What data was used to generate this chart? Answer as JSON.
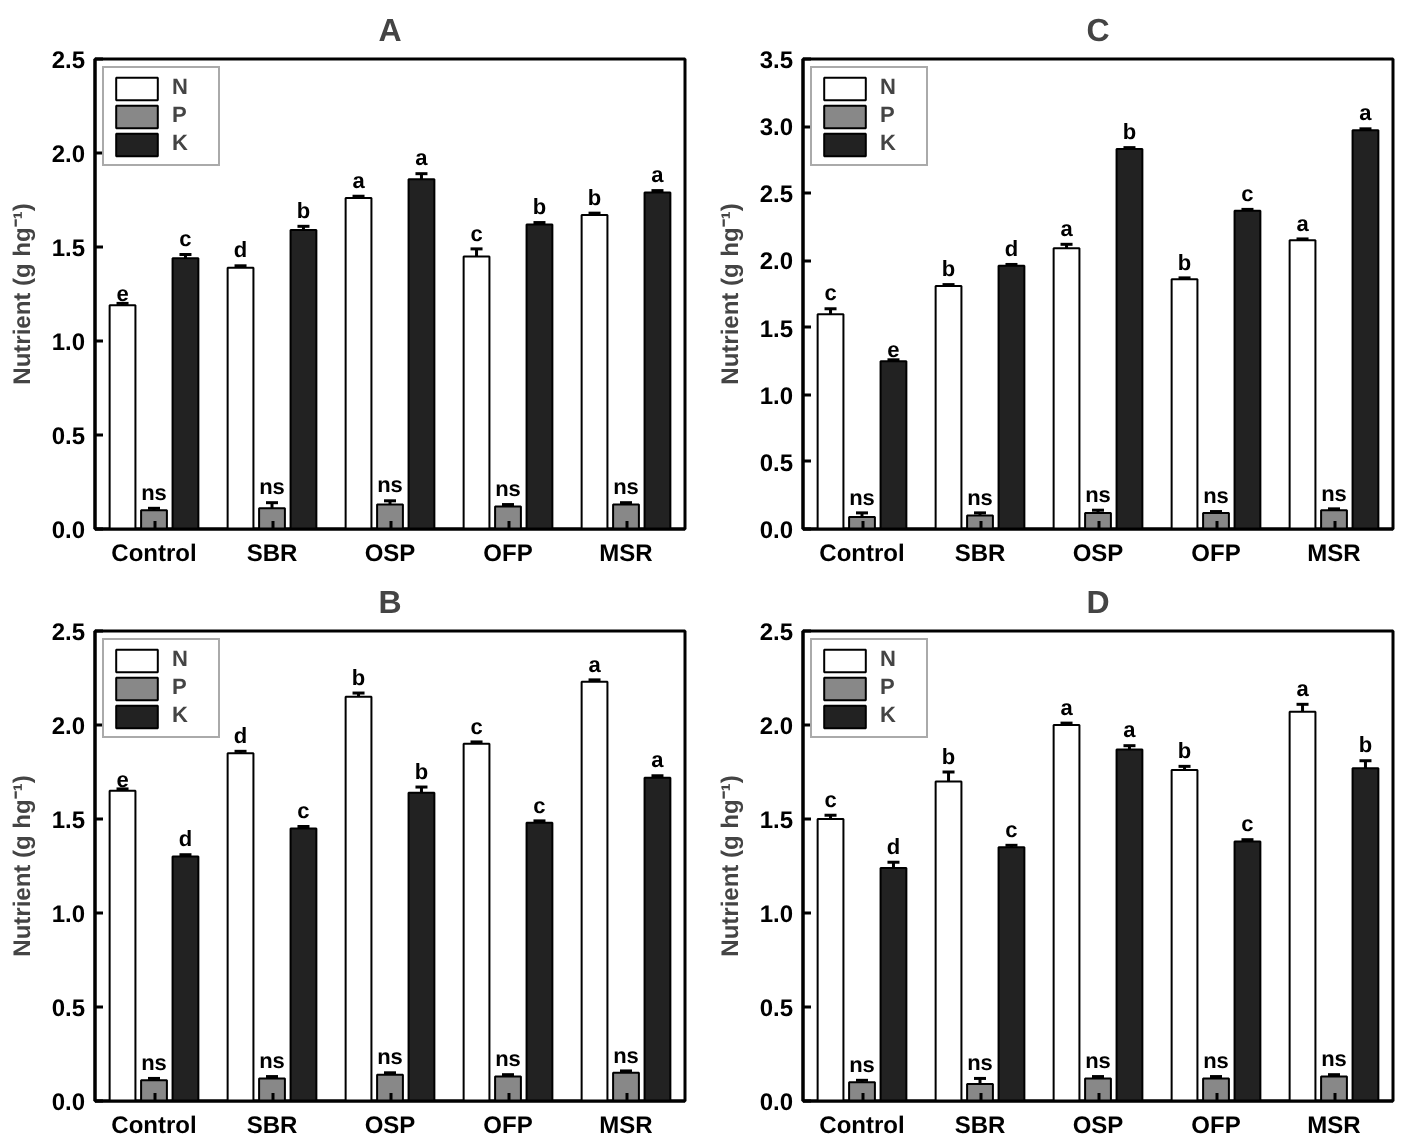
{
  "chart_data": [
    {
      "type": "bar",
      "title": "A",
      "ylabel": "Nutrient (g hg⁻¹)",
      "categories": [
        "Control",
        "SBR",
        "OSP",
        "OFP",
        "MSR"
      ],
      "ylim": [
        0,
        2.5
      ],
      "yticks": [
        {
          "value": 0,
          "label": "0.0"
        },
        0.5,
        {
          "value": 1,
          "label": "1.0"
        },
        1.5,
        {
          "value": 2,
          "label": "2.0"
        },
        2.5
      ],
      "grid": false,
      "legend": "top left",
      "series": [
        {
          "name": "N",
          "color": "#ffffff",
          "values": [
            1.19,
            1.39,
            1.76,
            1.45,
            1.67
          ],
          "errors": [
            0.01,
            0.01,
            0.01,
            0.04,
            0.01
          ],
          "value_labels": [
            "e",
            "d",
            "a",
            "c",
            "b"
          ]
        },
        {
          "name": "P",
          "color": "#888888",
          "values": [
            0.1,
            0.11,
            0.13,
            0.12,
            0.13
          ],
          "errors": [
            0.01,
            0.03,
            0.02,
            0.01,
            0.01
          ],
          "value_labels": [
            "ns",
            "ns",
            "ns",
            "ns",
            "ns"
          ]
        },
        {
          "name": "K",
          "color": "#222222",
          "values": [
            1.44,
            1.59,
            1.86,
            1.62,
            1.79
          ],
          "errors": [
            0.02,
            0.02,
            0.03,
            0.01,
            0.01
          ],
          "value_labels": [
            "c",
            "b",
            "a",
            "b",
            "a"
          ]
        }
      ]
    },
    {
      "type": "bar",
      "title": "C",
      "ylabel": "Nutrient (g hg⁻¹)",
      "categories": [
        "Control",
        "SBR",
        "OSP",
        "OFP",
        "MSR"
      ],
      "ylim": [
        0,
        3.5
      ],
      "yticks": [
        {
          "value": 0,
          "label": "0.0"
        },
        0.5,
        {
          "value": 1,
          "label": "1.0"
        },
        1.5,
        {
          "value": 2,
          "label": "2.0"
        },
        2.5,
        {
          "value": 3,
          "label": "3.0"
        },
        3.5
      ],
      "grid": false,
      "legend": "top left",
      "series": [
        {
          "name": "N",
          "color": "#ffffff",
          "values": [
            1.6,
            1.81,
            2.09,
            1.86,
            2.15
          ],
          "errors": [
            0.04,
            0.01,
            0.03,
            0.01,
            0.01
          ],
          "value_labels": [
            "c",
            "b",
            "a",
            "b",
            "a"
          ]
        },
        {
          "name": "P",
          "color": "#888888",
          "values": [
            0.09,
            0.1,
            0.12,
            0.12,
            0.14
          ],
          "errors": [
            0.03,
            0.02,
            0.02,
            0.01,
            0.01
          ],
          "value_labels": [
            "ns",
            "ns",
            "ns",
            "ns",
            "ns"
          ]
        },
        {
          "name": "K",
          "color": "#222222",
          "values": [
            1.25,
            1.96,
            2.83,
            2.37,
            2.97
          ],
          "errors": [
            0.01,
            0.01,
            0.01,
            0.01,
            0.01
          ],
          "value_labels": [
            "e",
            "d",
            "b",
            "c",
            "a"
          ]
        }
      ]
    },
    {
      "type": "bar",
      "title": "B",
      "ylabel": "Nutrient (g hg⁻¹)",
      "categories": [
        "Control",
        "SBR",
        "OSP",
        "OFP",
        "MSR"
      ],
      "ylim": [
        0,
        2.5
      ],
      "yticks": [
        {
          "value": 0,
          "label": "0.0"
        },
        0.5,
        {
          "value": 1,
          "label": "1.0"
        },
        1.5,
        {
          "value": 2,
          "label": "2.0"
        },
        2.5
      ],
      "grid": false,
      "legend": "top left",
      "series": [
        {
          "name": "N",
          "color": "#ffffff",
          "values": [
            1.65,
            1.85,
            2.15,
            1.9,
            2.23
          ],
          "errors": [
            0.01,
            0.01,
            0.02,
            0.01,
            0.01
          ],
          "value_labels": [
            "e",
            "d",
            "b",
            "c",
            "a"
          ]
        },
        {
          "name": "P",
          "color": "#888888",
          "values": [
            0.11,
            0.12,
            0.14,
            0.13,
            0.15
          ],
          "errors": [
            0.01,
            0.01,
            0.01,
            0.01,
            0.01
          ],
          "value_labels": [
            "ns",
            "ns",
            "ns",
            "ns",
            "ns"
          ]
        },
        {
          "name": "K",
          "color": "#222222",
          "values": [
            1.3,
            1.45,
            1.64,
            1.48,
            1.72
          ],
          "errors": [
            0.01,
            0.01,
            0.03,
            0.01,
            0.01
          ],
          "value_labels": [
            "d",
            "c",
            "b",
            "c",
            "a"
          ]
        }
      ]
    },
    {
      "type": "bar",
      "title": "D",
      "ylabel": "Nutrient (g hg⁻¹)",
      "categories": [
        "Control",
        "SBR",
        "OSP",
        "OFP",
        "MSR"
      ],
      "ylim": [
        0,
        2.5
      ],
      "yticks": [
        {
          "value": 0,
          "label": "0.0"
        },
        0.5,
        {
          "value": 1,
          "label": "1.0"
        },
        1.5,
        {
          "value": 2,
          "label": "2.0"
        },
        2.5
      ],
      "grid": false,
      "legend": "top left",
      "series": [
        {
          "name": "N",
          "color": "#ffffff",
          "values": [
            1.5,
            1.7,
            2.0,
            1.76,
            2.07
          ],
          "errors": [
            0.02,
            0.05,
            0.01,
            0.02,
            0.04
          ],
          "value_labels": [
            "c",
            "b",
            "a",
            "b",
            "a"
          ]
        },
        {
          "name": "P",
          "color": "#888888",
          "values": [
            0.1,
            0.09,
            0.12,
            0.12,
            0.13
          ],
          "errors": [
            0.01,
            0.03,
            0.01,
            0.01,
            0.01
          ],
          "value_labels": [
            "ns",
            "ns",
            "ns",
            "ns",
            "ns"
          ]
        },
        {
          "name": "K",
          "color": "#222222",
          "values": [
            1.24,
            1.35,
            1.87,
            1.38,
            1.77
          ],
          "errors": [
            0.03,
            0.01,
            0.02,
            0.01,
            0.04
          ],
          "value_labels": [
            "d",
            "c",
            "a",
            "c",
            "b"
          ]
        }
      ]
    }
  ]
}
